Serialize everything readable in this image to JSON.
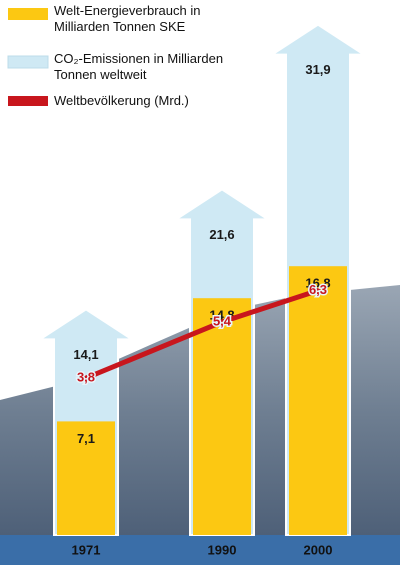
{
  "chart_data": {
    "type": "combo",
    "categories": [
      "1971",
      "1990",
      "2000"
    ],
    "series": [
      {
        "name": "Welt-Energieverbrauch in Milliarden Tonnen SKE",
        "type": "bar",
        "color": "#fcc812",
        "values": [
          7.1,
          14.8,
          16.8
        ],
        "value_labels": [
          "7,1",
          "14,8",
          "16,8"
        ]
      },
      {
        "name": "CO₂-Emissionen in Milliarden Tonnen weltweit",
        "type": "arrow",
        "color": "#cfe9f4",
        "values": [
          14.1,
          21.6,
          31.9
        ],
        "value_labels": [
          "14,1",
          "21,6",
          "31,9"
        ]
      },
      {
        "name": "Weltbevölkerung (Mrd.)",
        "type": "line",
        "color": "#c8161d",
        "values": [
          3.8,
          5.4,
          6.3
        ],
        "value_labels": [
          "3,8",
          "5,4",
          "6,3"
        ]
      }
    ]
  }
}
